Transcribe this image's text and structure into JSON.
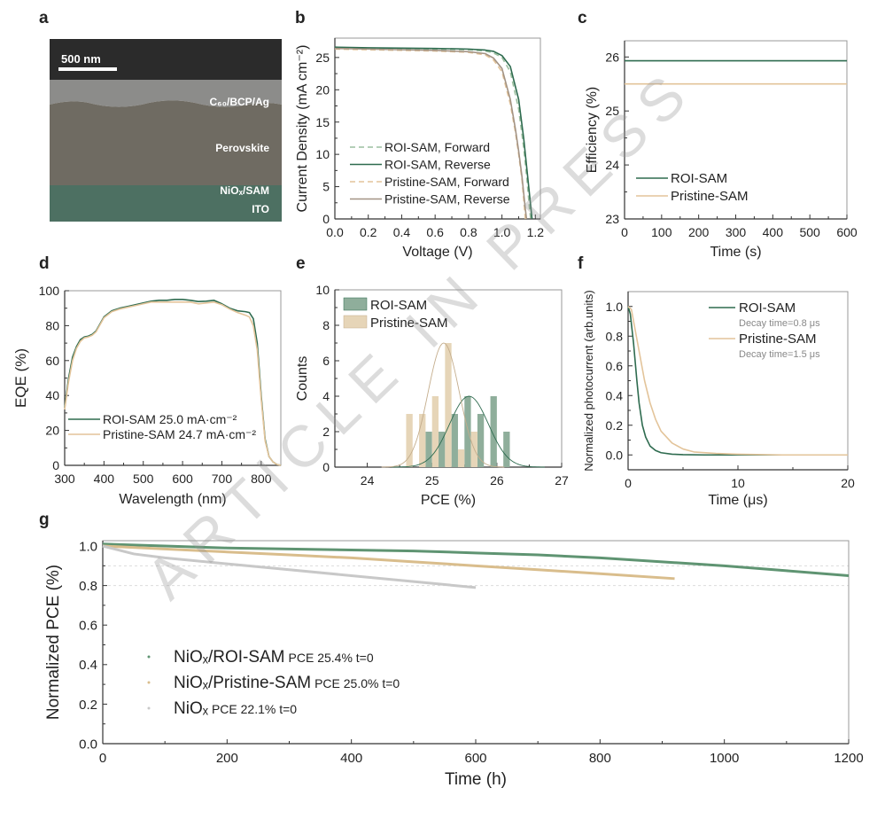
{
  "panel_labels": [
    "a",
    "b",
    "c",
    "d",
    "e",
    "f",
    "g"
  ],
  "watermark": "ARTICLE IN PRESS",
  "image_panel": {
    "scale_bar": "500 nm",
    "layers": [
      "C₆₀/BCP/Ag",
      "Perovskite",
      "NiOₓ/SAM",
      "ITO"
    ],
    "colors": {
      "vacuum": "#2b2b2b",
      "electrode": "#8c8c8a",
      "perovskite": "#6f6b62",
      "substrate": "#4d7062"
    }
  },
  "chart_data": [
    {
      "id": "b",
      "type": "line",
      "xlabel": "Voltage (V)",
      "ylabel": "Current Density (mA cm⁻²)",
      "xlim": [
        0,
        1.23
      ],
      "ylim": [
        0,
        28
      ],
      "xticks": [
        0.0,
        0.2,
        0.4,
        0.6,
        0.8,
        1.0,
        1.2
      ],
      "xtick_labels": [
        "0.0",
        "0.2",
        "0.4",
        "0.6",
        "0.8",
        "1.0",
        "1.2"
      ],
      "yticks": [
        0,
        5,
        10,
        15,
        20,
        25
      ],
      "ytick_labels": [
        "0",
        "5",
        "10",
        "15",
        "20",
        "25"
      ],
      "legend_position": "bottom-left",
      "series": [
        {
          "name": "ROI-SAM, Forward",
          "color": "#9cbf9f",
          "dash": true,
          "x": [
            0,
            0.2,
            0.4,
            0.6,
            0.8,
            0.9,
            0.95,
            1.0,
            1.05,
            1.1,
            1.13,
            1.15,
            1.165,
            1.172
          ],
          "y": [
            26.5,
            26.45,
            26.4,
            26.3,
            26.2,
            26.0,
            25.7,
            25.0,
            22.8,
            17.0,
            11.0,
            6.0,
            1.5,
            0
          ]
        },
        {
          "name": "ROI-SAM, Reverse",
          "color": "#2e6b4f",
          "dash": false,
          "x": [
            0,
            0.2,
            0.4,
            0.6,
            0.8,
            0.9,
            0.95,
            1.0,
            1.05,
            1.1,
            1.13,
            1.15,
            1.17,
            1.18
          ],
          "y": [
            26.6,
            26.5,
            26.45,
            26.4,
            26.3,
            26.15,
            25.95,
            25.3,
            23.6,
            18.5,
            12.5,
            7.5,
            2.5,
            0
          ]
        },
        {
          "name": "Pristine-SAM, Forward",
          "color": "#e3c49a",
          "dash": true,
          "x": [
            0,
            0.2,
            0.4,
            0.6,
            0.8,
            0.9,
            0.95,
            1.0,
            1.05,
            1.08,
            1.1,
            1.12,
            1.135,
            1.14
          ],
          "y": [
            26.3,
            26.2,
            26.1,
            26.0,
            25.8,
            25.4,
            24.6,
            22.8,
            17.8,
            13.5,
            10.0,
            6.0,
            1.5,
            0
          ]
        },
        {
          "name": "Pristine-SAM, Reverse",
          "color": "#a39384",
          "dash": false,
          "x": [
            0,
            0.2,
            0.4,
            0.6,
            0.8,
            0.9,
            0.95,
            1.0,
            1.05,
            1.08,
            1.1,
            1.12,
            1.14,
            1.147
          ],
          "y": [
            26.4,
            26.3,
            26.2,
            26.1,
            25.9,
            25.6,
            24.9,
            23.3,
            18.5,
            14.0,
            10.5,
            6.5,
            1.5,
            0
          ]
        }
      ]
    },
    {
      "id": "c",
      "type": "line",
      "xlabel": "Time (s)",
      "ylabel": "Efficiency (%)",
      "xlim": [
        0,
        600
      ],
      "ylim": [
        23,
        26.3
      ],
      "xticks": [
        0,
        100,
        200,
        300,
        400,
        500,
        600
      ],
      "xtick_labels": [
        "0",
        "100",
        "200",
        "300",
        "400",
        "500",
        "600"
      ],
      "yticks": [
        23,
        24,
        25,
        26
      ],
      "ytick_labels": [
        "23",
        "24",
        "25",
        "26"
      ],
      "legend_position": "bottom-left",
      "series": [
        {
          "name": "ROI-SAM",
          "color": "#2e6b4f",
          "x": [
            0,
            600
          ],
          "y": [
            25.93,
            25.93
          ]
        },
        {
          "name": "Pristine-SAM",
          "color": "#e3c49a",
          "x": [
            0,
            600
          ],
          "y": [
            25.5,
            25.5
          ]
        }
      ]
    },
    {
      "id": "d",
      "type": "line",
      "xlabel": "Wavelength (nm)",
      "ylabel": "EQE (%)",
      "xlim": [
        300,
        850
      ],
      "ylim": [
        0,
        100
      ],
      "xticks": [
        300,
        400,
        500,
        600,
        700,
        800
      ],
      "xtick_labels": [
        "300",
        "400",
        "500",
        "600",
        "700",
        "800"
      ],
      "yticks": [
        0,
        20,
        40,
        60,
        80,
        100
      ],
      "ytick_labels": [
        "0",
        "20",
        "40",
        "60",
        "80",
        "100"
      ],
      "legend_position": "bottom-left",
      "series": [
        {
          "name": "ROI-SAM 25.0 mA·cm⁻²",
          "color": "#2e6b4f",
          "x": [
            300,
            310,
            320,
            330,
            340,
            350,
            360,
            370,
            380,
            390,
            400,
            420,
            440,
            460,
            480,
            500,
            520,
            540,
            560,
            580,
            600,
            620,
            640,
            660,
            680,
            700,
            720,
            740,
            760,
            770,
            780,
            790,
            800,
            810,
            820,
            830,
            840,
            850
          ],
          "y": [
            33,
            50,
            62,
            68,
            72,
            73.5,
            74,
            75,
            77,
            81,
            85,
            88.5,
            90,
            91,
            92,
            93,
            94,
            94.5,
            94.5,
            95,
            95,
            94.5,
            93.8,
            94,
            94.5,
            92.5,
            90,
            88.5,
            88,
            87.5,
            84,
            70,
            40,
            15,
            5,
            2,
            0.5,
            0
          ]
        },
        {
          "name": "Pristine-SAM 24.7 mA·cm⁻²",
          "color": "#e3c49a",
          "x": [
            300,
            310,
            320,
            330,
            340,
            350,
            360,
            370,
            380,
            390,
            400,
            420,
            440,
            460,
            480,
            500,
            520,
            540,
            560,
            580,
            600,
            620,
            640,
            660,
            680,
            700,
            720,
            740,
            760,
            770,
            780,
            790,
            800,
            810,
            820,
            830,
            840,
            850
          ],
          "y": [
            32,
            48,
            60,
            67,
            71,
            73,
            73.5,
            74.5,
            76.5,
            80.5,
            84.5,
            88,
            89.5,
            90.5,
            91.5,
            92.5,
            93.5,
            93.5,
            93.5,
            93.5,
            93.5,
            93.5,
            92.5,
            93,
            93.5,
            92,
            89.5,
            87.5,
            86,
            85,
            80,
            66,
            38,
            14,
            5,
            2,
            0.5,
            0
          ]
        }
      ]
    },
    {
      "id": "e",
      "type": "bar",
      "xlabel": "PCE (%)",
      "ylabel": "Counts",
      "xlim": [
        23.5,
        27
      ],
      "ylim": [
        0,
        10
      ],
      "xticks": [
        24,
        25,
        26,
        27
      ],
      "xtick_labels": [
        "24",
        "25",
        "26",
        "27"
      ],
      "yticks": [
        0,
        2,
        4,
        6,
        8,
        10
      ],
      "ytick_labels": [
        "0",
        "2",
        "4",
        "6",
        "8",
        "10"
      ],
      "bin_width": 0.1,
      "legend_position": "top-left",
      "series": [
        {
          "name": "ROI-SAM",
          "color": "#8fae9b",
          "line_color": "#2e6b4f",
          "x": [
            24.95,
            25.15,
            25.35,
            25.55,
            25.75,
            25.95,
            26.15
          ],
          "values": [
            2,
            2,
            3,
            4,
            3,
            4,
            2
          ],
          "fit": {
            "mean": 25.57,
            "sd": 0.3,
            "peak": 4
          }
        },
        {
          "name": "Pristine-SAM",
          "color": "#e6d5b8",
          "line_color": "#c4ad8c",
          "x": [
            24.65,
            24.85,
            25.05,
            25.25,
            25.45,
            25.65
          ],
          "values": [
            3,
            3,
            4,
            7,
            1,
            2
          ],
          "fit": {
            "mean": 25.18,
            "sd": 0.24,
            "peak": 7
          }
        }
      ]
    },
    {
      "id": "f",
      "type": "line",
      "xlabel": "Time (μs)",
      "ylabel": "Normalized photocurrent (arb.units)",
      "xlim": [
        0,
        20
      ],
      "ylim": [
        -0.1,
        1.1
      ],
      "xticks": [
        0,
        10,
        20
      ],
      "xtick_labels": [
        "0",
        "10",
        "20"
      ],
      "yticks": [
        0,
        0.2,
        0.4,
        0.6,
        0.8,
        1.0
      ],
      "ytick_labels": [
        "0.0",
        "0.2",
        "0.4",
        "0.6",
        "0.8",
        "1.0"
      ],
      "legend_position": "top-right",
      "series": [
        {
          "name": "ROI-SAM",
          "note": "Decay time=0.8 μs",
          "color": "#2e6b4f",
          "x": [
            0,
            0.2,
            0.5,
            0.8,
            1.0,
            1.3,
            1.6,
            2,
            2.5,
            3,
            4,
            5,
            7,
            10,
            20
          ],
          "y": [
            1.0,
            0.95,
            0.75,
            0.5,
            0.35,
            0.2,
            0.12,
            0.06,
            0.03,
            0.015,
            0.005,
            0.002,
            0,
            0,
            0
          ]
        },
        {
          "name": "Pristine-SAM",
          "note": "Decay time=1.5 μs",
          "color": "#e3c49a",
          "x": [
            0,
            0.3,
            0.5,
            1,
            1.5,
            2,
            2.5,
            3,
            4,
            5,
            6,
            8,
            10,
            14,
            20
          ],
          "y": [
            1.0,
            0.98,
            0.9,
            0.7,
            0.5,
            0.35,
            0.24,
            0.16,
            0.08,
            0.04,
            0.02,
            0.01,
            0.005,
            0,
            0
          ]
        }
      ]
    },
    {
      "id": "g",
      "type": "scatter",
      "xlabel": "Time (h)",
      "ylabel": "Normalized PCE (%)",
      "xlim": [
        0,
        1200
      ],
      "ylim": [
        0,
        1.027
      ],
      "xticks": [
        0,
        200,
        400,
        600,
        800,
        1000,
        1200
      ],
      "xtick_labels": [
        "0",
        "200",
        "400",
        "600",
        "800",
        "1000",
        "1200"
      ],
      "yticks": [
        0,
        0.2,
        0.4,
        0.6,
        0.8,
        1.0
      ],
      "ytick_labels": [
        "0.0",
        "0.2",
        "0.4",
        "0.6",
        "0.8",
        "1.0"
      ],
      "reference_lines": [
        0.8,
        0.9
      ],
      "legend_position": "bottom-left",
      "series": [
        {
          "name": "NiOₓ/ROI-SAM",
          "note": "PCE 25.4% t=0",
          "color": "#5f9472",
          "x": [
            0,
            100,
            200,
            300,
            400,
            500,
            600,
            700,
            800,
            900,
            1000,
            1100,
            1200
          ],
          "y": [
            1.01,
            1.0,
            0.99,
            0.985,
            0.98,
            0.975,
            0.965,
            0.955,
            0.94,
            0.92,
            0.9,
            0.875,
            0.85
          ]
        },
        {
          "name": "NiOₓ/Pristine-SAM",
          "note": "PCE 25.0% t=0",
          "color": "#d9bd8c",
          "x": [
            0,
            100,
            200,
            300,
            400,
            500,
            600,
            700,
            800,
            920
          ],
          "y": [
            1.0,
            0.985,
            0.97,
            0.955,
            0.94,
            0.92,
            0.9,
            0.88,
            0.86,
            0.835
          ]
        },
        {
          "name": "NiOₓ",
          "note": "PCE 22.1% t=0",
          "color": "#c8c8c8",
          "x": [
            0,
            50,
            100,
            200,
            300,
            400,
            500,
            600
          ],
          "y": [
            1.0,
            0.96,
            0.94,
            0.91,
            0.88,
            0.85,
            0.82,
            0.79
          ]
        }
      ]
    }
  ]
}
